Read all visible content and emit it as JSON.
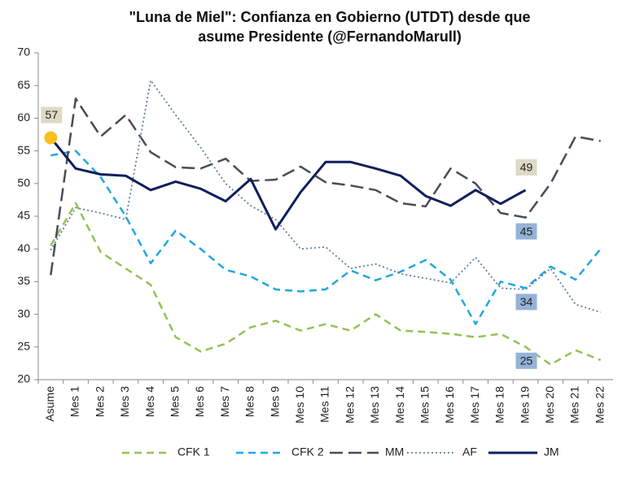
{
  "chart_data": {
    "type": "line",
    "title": [
      "\"Luna de Miel\": Confianza en Gobierno (UTDT) desde que",
      "asume Presidente (@FernandoMarull)"
    ],
    "categories": [
      "Asume",
      "Mes 1",
      "Mes 2",
      "Mes 3",
      "Mes 4",
      "Mes 5",
      "Mes 6",
      "Mes 7",
      "Mes 8",
      "Mes 9",
      "Mes 10",
      "Mes 11",
      "Mes 12",
      "Mes 13",
      "Mes 14",
      "Mes 15",
      "Mes 16",
      "Mes 17",
      "Mes 18",
      "Mes 19",
      "Mes 20",
      "Mes 21",
      "Mes 22"
    ],
    "ylim": [
      20,
      70
    ],
    "yticks": [
      20,
      25,
      30,
      35,
      40,
      45,
      50,
      55,
      60,
      65,
      70
    ],
    "grid": false,
    "legend": "bottom",
    "series": [
      {
        "name": "CFK 1",
        "color": "#92c353",
        "dash": "dashed",
        "label_color": "#95b3d7",
        "values": [
          40.5,
          47,
          39.5,
          37,
          34.5,
          26.5,
          24.3,
          25.5,
          28,
          29,
          27.5,
          28.5,
          27.5,
          30,
          27.5,
          27.3,
          27,
          26.5,
          27,
          25,
          22.3,
          24.5,
          23
        ],
        "value_labels": [
          null,
          null,
          null,
          null,
          null,
          null,
          null,
          null,
          null,
          null,
          null,
          null,
          null,
          null,
          null,
          null,
          null,
          null,
          null,
          "25",
          null,
          null,
          null
        ]
      },
      {
        "name": "CFK 2",
        "color": "#1fa8e0",
        "dash": "dashed",
        "label_color": "#95b3d7",
        "values": [
          54.3,
          55,
          51,
          45,
          37.8,
          42.8,
          40,
          36.8,
          35.8,
          33.8,
          33.5,
          33.8,
          36.7,
          35.2,
          36.5,
          38.3,
          35.3,
          28.5,
          35,
          34,
          37.3,
          35.3,
          40
        ],
        "value_labels": [
          null,
          null,
          null,
          null,
          null,
          null,
          null,
          null,
          null,
          null,
          null,
          null,
          null,
          null,
          null,
          null,
          null,
          null,
          null,
          "34",
          null,
          null,
          null
        ]
      },
      {
        "name": "MM",
        "color": "#4a4a5a",
        "dash": "longdash",
        "label_color": "#95b3d7",
        "values": [
          36,
          63,
          57.2,
          60.5,
          54.8,
          52.5,
          52.3,
          53.8,
          50.4,
          50.6,
          52.6,
          50.2,
          49.7,
          49,
          47,
          46.5,
          52.3,
          50,
          45.5,
          44.8,
          50,
          57.2,
          56.5
        ],
        "value_labels": [
          null,
          null,
          null,
          null,
          null,
          null,
          null,
          null,
          null,
          null,
          null,
          null,
          null,
          null,
          null,
          null,
          null,
          null,
          null,
          "45",
          null,
          null,
          null
        ]
      },
      {
        "name": "AF",
        "color": "#5f7f9a",
        "dash": "dotted",
        "label_color": "#95b3d7",
        "values": [
          39.8,
          46.3,
          45.5,
          44.5,
          65.8,
          60.5,
          55.5,
          50,
          46.6,
          44.5,
          40,
          40.3,
          37,
          37.7,
          36.2,
          35.5,
          34.8,
          38.7,
          34,
          33.8,
          37,
          31.5,
          30.3
        ]
      },
      {
        "name": "JM",
        "color": "#0f1f5c",
        "dash": "solid",
        "label_color": "#ddd9c3",
        "marker_color": "#fbbf1c",
        "values": [
          57,
          52.3,
          51.4,
          51.2,
          49,
          50.3,
          49.2,
          47.3,
          50.7,
          43,
          48.7,
          53.3,
          53.3,
          52.3,
          51.2,
          48.1,
          46.6,
          49,
          46.9,
          49,
          null,
          null,
          null
        ],
        "value_labels": [
          "57",
          null,
          null,
          null,
          null,
          null,
          null,
          null,
          null,
          null,
          null,
          null,
          null,
          null,
          null,
          null,
          null,
          null,
          null,
          "49",
          null,
          null,
          null
        ]
      }
    ]
  }
}
